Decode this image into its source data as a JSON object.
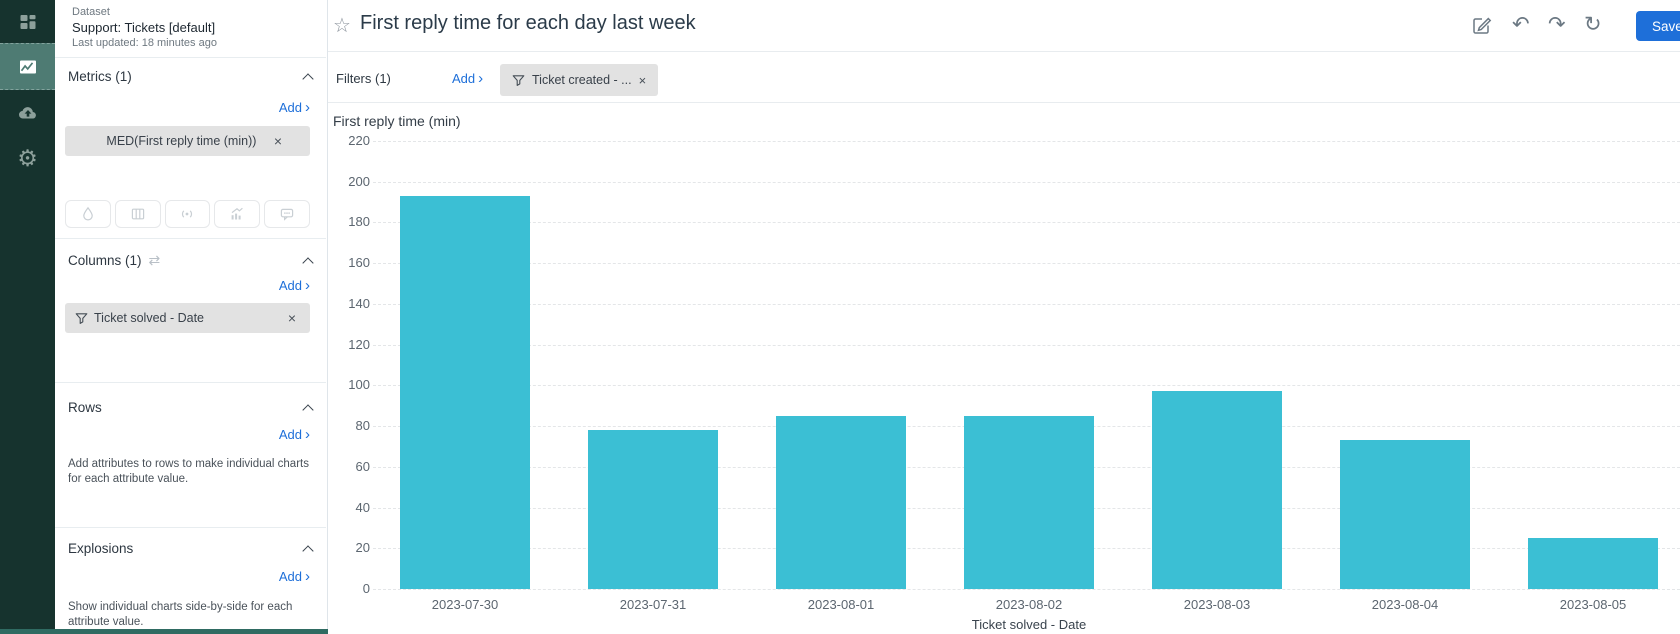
{
  "sidebar": {
    "items": [
      {
        "icon": "dashboards",
        "active": false
      },
      {
        "icon": "analyze",
        "active": true
      },
      {
        "icon": "load",
        "active": false
      },
      {
        "icon": "settings",
        "active": false
      }
    ]
  },
  "panel": {
    "dataset": {
      "label": "Dataset",
      "name": "Support: Tickets [default]",
      "updated": "Last updated: 18 minutes ago"
    },
    "metrics": {
      "title": "Metrics (1)",
      "add": "Add",
      "chip": "MED(First reply time (min))"
    },
    "visual_buttons": [
      "droplet",
      "columns",
      "broadcast",
      "trend-chart",
      "comment"
    ],
    "columns": {
      "title": "Columns (1)",
      "add": "Add",
      "chip": "Ticket solved - Date"
    },
    "rows": {
      "title": "Rows",
      "add": "Add",
      "description": "Add attributes to rows to make individual charts for each attribute value."
    },
    "explosions": {
      "title": "Explosions",
      "add": "Add",
      "description": "Show individual charts side-by-side for each attribute value."
    }
  },
  "header": {
    "title": "First reply time for each day last week",
    "save_label": "Save"
  },
  "filters": {
    "title": "Filters (1)",
    "add": "Add",
    "chip": "Ticket created - ..."
  },
  "icons": {
    "star": "☆",
    "chevron_right": "›",
    "close": "×",
    "undo": "↶",
    "redo": "↷",
    "refresh": "↻",
    "gear": "⚙",
    "swap": "⇄"
  },
  "chart_data": {
    "type": "bar",
    "title": "First reply time (min)",
    "categories": [
      "2023-07-30",
      "2023-07-31",
      "2023-08-01",
      "2023-08-02",
      "2023-08-03",
      "2023-08-04",
      "2023-08-05"
    ],
    "values": [
      193,
      78,
      85,
      85,
      97,
      73,
      25
    ],
    "xlabel": "Ticket solved - Date",
    "ylabel": "First reply time (min)",
    "ylim": [
      0,
      220
    ],
    "ytick_step": 20,
    "bar_color": "#3bbfd4",
    "grid": true,
    "legend": false
  }
}
